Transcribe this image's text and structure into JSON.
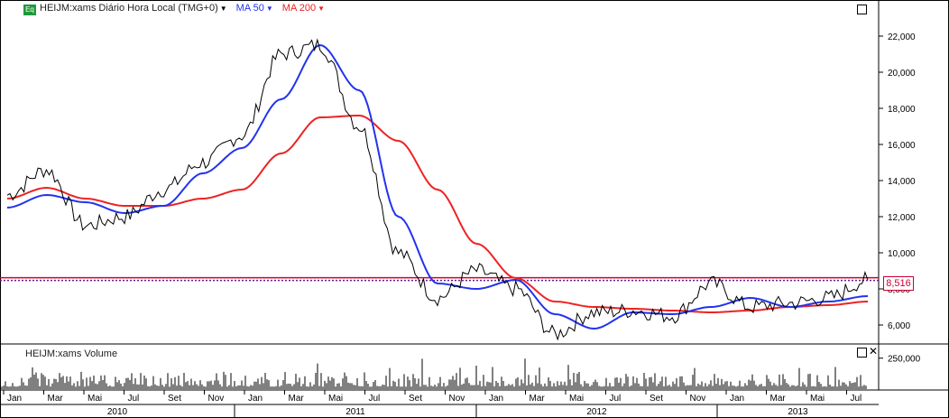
{
  "price_panel": {
    "eq_badge": "Eq",
    "ticker_label": "HEIJM:xams Diário Hora Local (TMG+0)",
    "ma50_label": "MA 50",
    "ma200_label": "MA 200",
    "last_price_label": "8,516",
    "y_ticks": [
      "22,000",
      "20,000",
      "18,000",
      "16,000",
      "14,000",
      "12,000",
      "10,000",
      "8,000",
      "6,000"
    ],
    "colors": {
      "price": "#000000",
      "ma50": "#2233ee",
      "ma200": "#ee2222",
      "hline": "#cc0033",
      "dotted": "#6a1a8a"
    }
  },
  "volume_panel": {
    "label": "HEIJM:xams Volume",
    "y_tick": "250,000"
  },
  "x_axis": {
    "months": [
      "Jan",
      "Mar",
      "Mai",
      "Jul",
      "Set",
      "Nov",
      "Jan",
      "Mar",
      "Mai",
      "Jul",
      "Set",
      "Nov",
      "Jan",
      "Mar",
      "Mai",
      "Jul",
      "Set",
      "Nov",
      "Jan",
      "Mar",
      "Mai",
      "Jul"
    ],
    "years": [
      "2010",
      "2011",
      "2012",
      "2013"
    ]
  },
  "chart_data": {
    "type": "line",
    "title": "HEIJM:xams Diário Hora Local (TMG+0)",
    "x": [
      "2010-01",
      "2010-03",
      "2010-05",
      "2010-07",
      "2010-09",
      "2010-11",
      "2011-01",
      "2011-03",
      "2011-05",
      "2011-07",
      "2011-09",
      "2011-11",
      "2012-01",
      "2012-03",
      "2012-05",
      "2012-07",
      "2012-09",
      "2012-11",
      "2013-01",
      "2013-03",
      "2013-05",
      "2013-07",
      "2013-08"
    ],
    "series": [
      {
        "name": "HEIJM:xams",
        "values": [
          13.2,
          14.6,
          11.5,
          12.0,
          13.5,
          15.0,
          16.5,
          21.0,
          21.5,
          17.0,
          10.0,
          7.5,
          9.0,
          8.0,
          5.5,
          6.7,
          6.8,
          6.5,
          8.3,
          7.0,
          7.2,
          7.5,
          8.5
        ]
      },
      {
        "name": "MA 50",
        "values": [
          12.5,
          13.2,
          12.8,
          12.2,
          12.6,
          14.4,
          15.8,
          18.5,
          21.5,
          19.0,
          12.0,
          8.3,
          8.0,
          8.5,
          6.6,
          5.8,
          6.7,
          6.6,
          7.0,
          7.5,
          7.0,
          7.3,
          7.6
        ]
      },
      {
        "name": "MA 200",
        "values": [
          13.0,
          13.6,
          13.0,
          12.6,
          12.6,
          13.0,
          13.5,
          15.5,
          17.5,
          17.6,
          16.2,
          13.5,
          10.5,
          8.6,
          7.3,
          7.0,
          6.9,
          6.8,
          6.7,
          6.8,
          7.0,
          7.1,
          7.3
        ]
      }
    ],
    "hline": 8.516,
    "ylim": [
      5.0,
      24.0
    ],
    "yticks": [
      6000,
      8000,
      10000,
      12000,
      14000,
      16000,
      18000,
      20000,
      22000
    ],
    "volume": {
      "name": "HEIJM:xams Volume",
      "ylim": [
        0,
        350000
      ],
      "ytick": 250000
    }
  }
}
